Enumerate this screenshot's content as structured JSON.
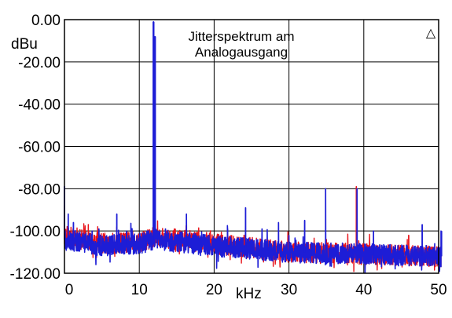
{
  "chart_data": {
    "type": "line",
    "title_lines": [
      "Jitterspektrum am",
      "Analogausgang"
    ],
    "ylabel": "dBu",
    "xlabel": "kHz",
    "xlim": [
      0,
      50
    ],
    "ylim": [
      -120,
      0
    ],
    "x_ticks": [
      0,
      10,
      20,
      30,
      40,
      50
    ],
    "x_tick_labels": [
      "0",
      "10",
      "20",
      "30",
      "40",
      "50"
    ],
    "y_ticks": [
      0,
      -20,
      -40,
      -60,
      -80,
      -100,
      -120
    ],
    "y_tick_labels": [
      "0.00",
      "-20.00",
      "-40.00",
      "-60.00",
      "-80.00",
      "-100.00",
      "-120.00"
    ],
    "grid": true,
    "marker_glyph": "△",
    "series": [
      {
        "color": "#e8141b",
        "noise_floor": [
          [
            0,
            -102
          ],
          [
            5,
            -106
          ],
          [
            10,
            -105
          ],
          [
            12,
            -103
          ],
          [
            20,
            -106
          ],
          [
            30,
            -110
          ],
          [
            40,
            -111
          ],
          [
            50,
            -112
          ]
        ],
        "peaks": [
          [
            0,
            -88
          ],
          [
            0.8,
            -101
          ],
          [
            4,
            -102
          ],
          [
            7,
            -98
          ],
          [
            12,
            -104
          ],
          [
            17,
            -102
          ],
          [
            24,
            -102
          ],
          [
            35,
            -104
          ],
          [
            39,
            -79
          ],
          [
            46,
            -102
          ],
          [
            51,
            -112
          ]
        ]
      },
      {
        "color": "#1d1dd6",
        "noise_floor": [
          [
            0,
            -104
          ],
          [
            5,
            -107
          ],
          [
            10,
            -106
          ],
          [
            12,
            -104
          ],
          [
            20,
            -107
          ],
          [
            30,
            -110
          ],
          [
            40,
            -111
          ],
          [
            50,
            -112
          ]
        ],
        "peaks": [
          [
            0,
            -79
          ],
          [
            0.5,
            -92
          ],
          [
            1.2,
            -96
          ],
          [
            3.7,
            -100
          ],
          [
            4.6,
            -99
          ],
          [
            7,
            -92
          ],
          [
            8.3,
            -100
          ],
          [
            11.9,
            -1
          ],
          [
            12.1,
            -8
          ],
          [
            13.5,
            -99
          ],
          [
            16.3,
            -92
          ],
          [
            21.8,
            -99
          ],
          [
            24.2,
            -89
          ],
          [
            26.4,
            -99
          ],
          [
            28.6,
            -96
          ],
          [
            32.1,
            -95
          ],
          [
            34.9,
            -80
          ],
          [
            39.1,
            -80
          ],
          [
            41.3,
            -100
          ],
          [
            47.8,
            -97
          ],
          [
            50.4,
            -100
          ]
        ]
      }
    ]
  }
}
